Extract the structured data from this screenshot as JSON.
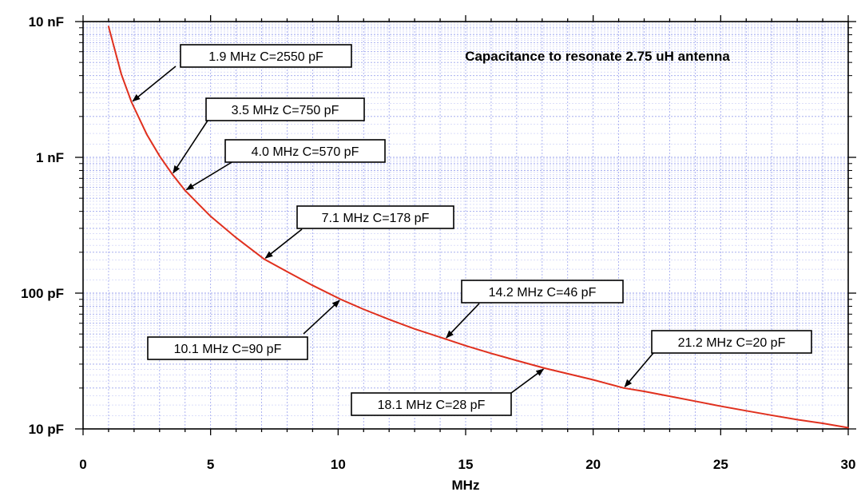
{
  "chart_data": {
    "type": "line",
    "title": "Capacitance to resonate 2.75 uH antenna",
    "xlabel": "MHz",
    "ylabel": "",
    "x_scale": "linear",
    "y_scale": "log",
    "xlim": [
      0,
      30
    ],
    "ylim_pF": [
      10,
      10000
    ],
    "x_ticks": [
      0,
      5,
      10,
      15,
      20,
      25,
      30
    ],
    "x_tick_labels": [
      "0",
      "5",
      "10",
      "15",
      "20",
      "25",
      "30"
    ],
    "y_ticks_pF": [
      10,
      100,
      1000,
      10000
    ],
    "y_tick_labels": [
      "10 pF",
      "100 pF",
      "1 nF",
      "10 nF"
    ],
    "grid": true,
    "line_color": "#e0301e",
    "grid_color": "#9aa2ee",
    "series": [
      {
        "x": [
          1.0,
          1.5,
          1.9,
          2.5,
          3.0,
          3.5,
          4.0,
          5.0,
          6.0,
          7.1,
          8.0,
          9.0,
          10.1,
          11.0,
          12.0,
          13.0,
          14.2,
          15.0,
          16.0,
          17.0,
          18.1,
          19.0,
          20.0,
          21.2,
          22.0,
          23.0,
          24.0,
          25.0,
          26.0,
          27.0,
          28.0,
          29.0,
          30.0
        ],
        "y": [
          9210,
          4094,
          2550,
          1474,
          1023,
          750,
          570,
          368,
          256,
          178,
          144,
          114,
          90,
          76,
          64,
          54.5,
          46,
          41,
          36,
          31.9,
          28,
          25.5,
          23,
          20,
          18.9,
          17.4,
          16,
          14.7,
          13.6,
          12.6,
          11.7,
          11,
          10.2
        ]
      }
    ],
    "annotations": [
      {
        "text": "1.9 MHz C=2550 pF",
        "x": 1.9,
        "y": 2550
      },
      {
        "text": "3.5 MHz C=750 pF",
        "x": 3.5,
        "y": 750
      },
      {
        "text": "4.0 MHz C=570 pF",
        "x": 4.0,
        "y": 570
      },
      {
        "text": "7.1 MHz C=178 pF",
        "x": 7.1,
        "y": 178
      },
      {
        "text": "10.1 MHz C=90 pF",
        "x": 10.1,
        "y": 90
      },
      {
        "text": "14.2 MHz C=46 pF",
        "x": 14.2,
        "y": 46
      },
      {
        "text": "18.1 MHz C=28 pF",
        "x": 18.1,
        "y": 28
      },
      {
        "text": "21.2 MHz C=20 pF",
        "x": 21.2,
        "y": 20
      }
    ]
  }
}
